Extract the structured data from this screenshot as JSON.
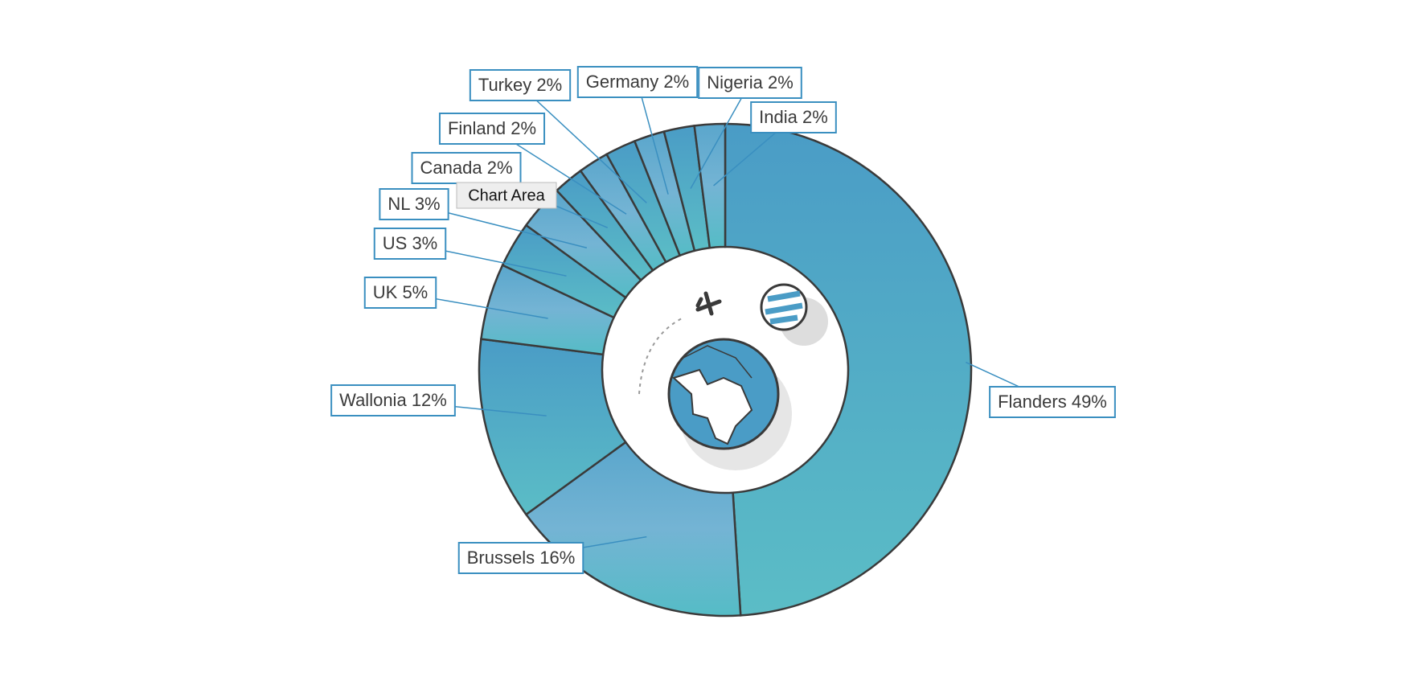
{
  "chart_data": {
    "type": "donut",
    "categories": [
      "Flanders",
      "Brussels",
      "Wallonia",
      "UK",
      "US",
      "NL",
      "Canada",
      "Finland",
      "Turkey",
      "Germany",
      "Nigeria",
      "India"
    ],
    "values": [
      49,
      16,
      12,
      5,
      3,
      3,
      2,
      2,
      2,
      2,
      2,
      2
    ],
    "value_labels": [
      "49%",
      "16%",
      "12%",
      "5%",
      "3%",
      "3%",
      "2%",
      "2%",
      "2%",
      "2%",
      "2%",
      "2%"
    ],
    "colors": [
      "#4a9cc6",
      "#5bbdc6"
    ]
  },
  "tooltip": "Chart Area"
}
